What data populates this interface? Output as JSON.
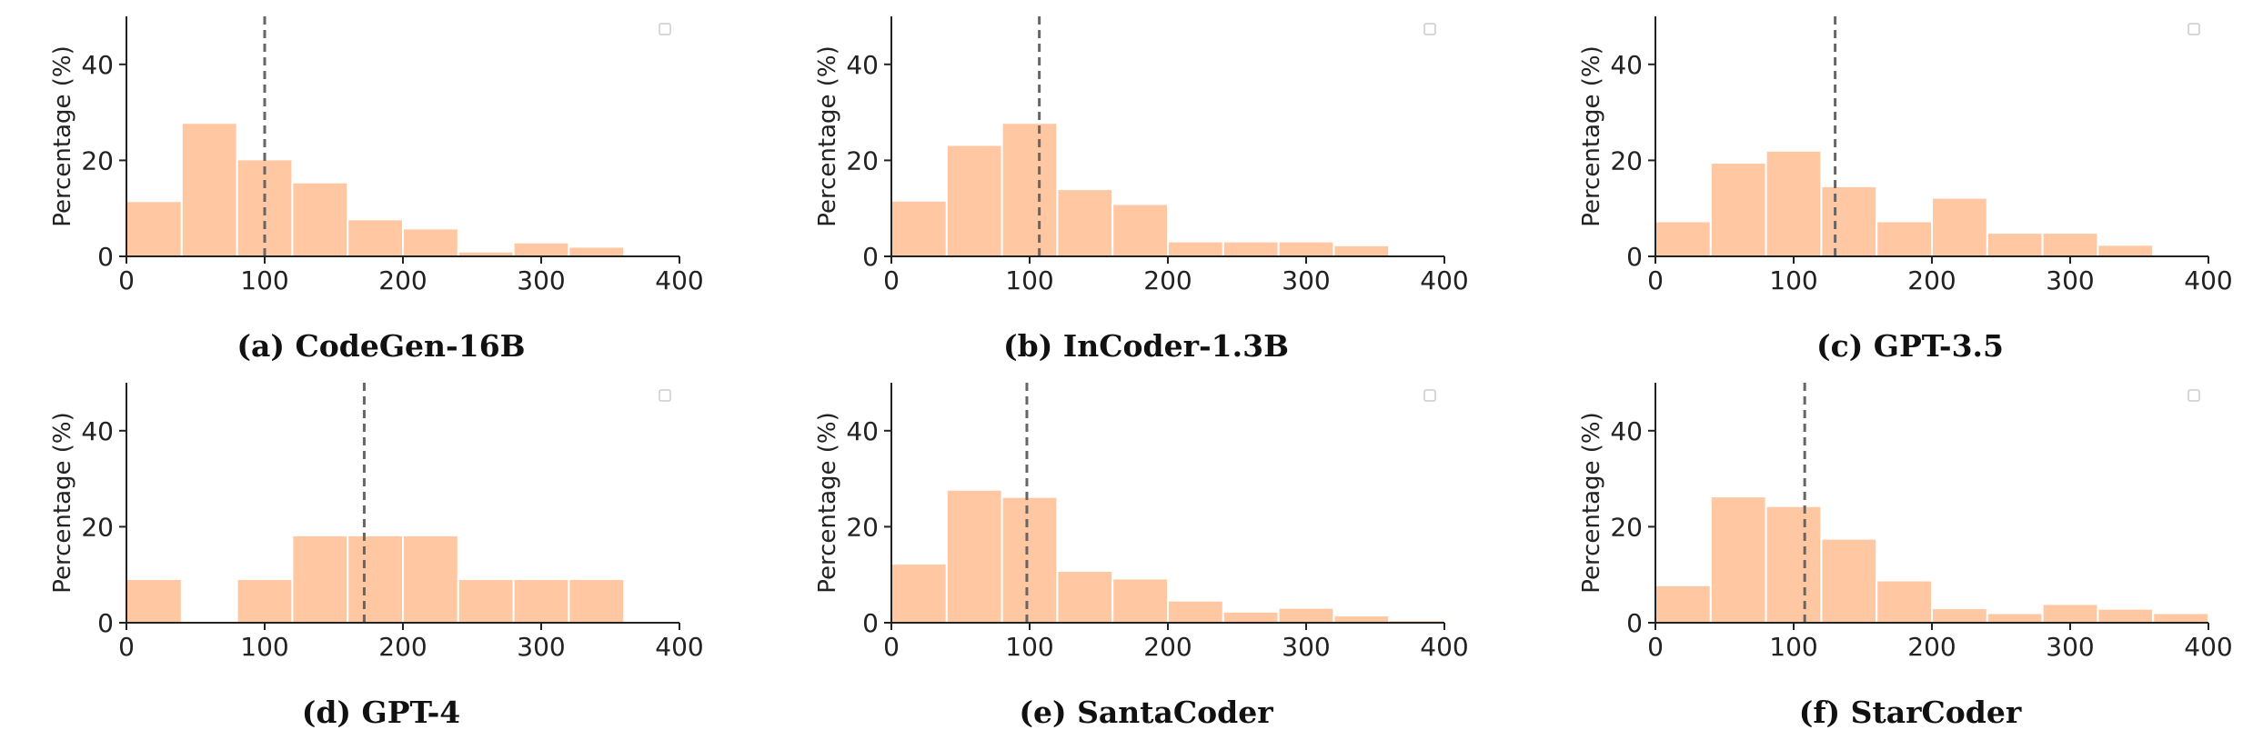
{
  "chart_data": [
    {
      "type": "bar",
      "caption": "(a) CodeGen-16B",
      "ylabel": "Percentage (%)",
      "xlim": [
        0,
        400
      ],
      "ylim": [
        0,
        50
      ],
      "xticks": [
        "0",
        "100",
        "200",
        "300",
        "400"
      ],
      "yticks": [
        "0",
        "20",
        "40"
      ],
      "bin_width": 40,
      "bins": [
        0,
        40,
        80,
        120,
        160,
        200,
        240,
        280,
        320,
        360
      ],
      "values": [
        11.5,
        27.8,
        20.2,
        15.4,
        7.7,
        5.8,
        1.0,
        2.9,
        2.0,
        0
      ],
      "reference_line": 100,
      "legend": "empty box top-right",
      "grid": false
    },
    {
      "type": "bar",
      "caption": "(b) InCoder-1.3B",
      "ylabel": "Percentage (%)",
      "xlim": [
        0,
        400
      ],
      "ylim": [
        0,
        50
      ],
      "xticks": [
        "0",
        "100",
        "200",
        "300",
        "400"
      ],
      "yticks": [
        "0",
        "20",
        "40"
      ],
      "bin_width": 40,
      "bins": [
        0,
        40,
        80,
        120,
        160,
        200,
        240,
        280,
        320,
        360
      ],
      "values": [
        11.6,
        23.2,
        27.8,
        14.0,
        10.9,
        3.1,
        3.1,
        3.1,
        2.3,
        0
      ],
      "reference_line": 107,
      "legend": "empty box top-right",
      "grid": false
    },
    {
      "type": "bar",
      "caption": "(c) GPT-3.5",
      "ylabel": "Percentage (%)",
      "xlim": [
        0,
        400
      ],
      "ylim": [
        0,
        50
      ],
      "xticks": [
        "0",
        "100",
        "200",
        "300",
        "400"
      ],
      "yticks": [
        "0",
        "20",
        "40"
      ],
      "bin_width": 40,
      "bins": [
        0,
        40,
        80,
        120,
        160,
        200,
        240,
        280,
        320,
        360
      ],
      "values": [
        7.3,
        19.5,
        22.0,
        14.6,
        7.3,
        12.2,
        4.9,
        4.9,
        2.4,
        0
      ],
      "reference_line": 130,
      "legend": "empty box top-right",
      "grid": false
    },
    {
      "type": "bar",
      "caption": "(d) GPT-4",
      "ylabel": "Percentage (%)",
      "xlim": [
        0,
        400
      ],
      "ylim": [
        0,
        50
      ],
      "xticks": [
        "0",
        "100",
        "200",
        "300",
        "400"
      ],
      "yticks": [
        "0",
        "20",
        "40"
      ],
      "bin_width": 40,
      "bins": [
        0,
        40,
        80,
        120,
        160,
        200,
        240,
        280,
        320,
        360
      ],
      "values": [
        9.1,
        0,
        9.1,
        18.2,
        18.2,
        18.2,
        9.1,
        9.1,
        9.1,
        0
      ],
      "reference_line": 172,
      "legend": "empty box top-right",
      "grid": false
    },
    {
      "type": "bar",
      "caption": "(e) SantaCoder",
      "ylabel": "Percentage (%)",
      "xlim": [
        0,
        400
      ],
      "ylim": [
        0,
        50
      ],
      "xticks": [
        "0",
        "100",
        "200",
        "300",
        "400"
      ],
      "yticks": [
        "0",
        "20",
        "40"
      ],
      "bin_width": 40,
      "bins": [
        0,
        40,
        80,
        120,
        160,
        200,
        240,
        280,
        320,
        360
      ],
      "values": [
        12.3,
        27.7,
        26.2,
        10.8,
        9.2,
        4.6,
        2.3,
        3.1,
        1.5,
        0.5
      ],
      "reference_line": 98,
      "legend": "empty box top-right",
      "grid": false
    },
    {
      "type": "bar",
      "caption": "(f) StarCoder",
      "ylabel": "Percentage (%)",
      "xlim": [
        0,
        400
      ],
      "ylim": [
        0,
        50
      ],
      "xticks": [
        "0",
        "100",
        "200",
        "300",
        "400"
      ],
      "yticks": [
        "0",
        "20",
        "40"
      ],
      "bin_width": 40,
      "bins": [
        0,
        40,
        80,
        120,
        160,
        200,
        240,
        280,
        320,
        360
      ],
      "values": [
        7.8,
        26.3,
        24.3,
        17.5,
        8.8,
        3.0,
        2.0,
        3.9,
        2.9,
        2.0
      ],
      "reference_line": 108,
      "legend": "empty box top-right",
      "grid": false
    }
  ],
  "colors": {
    "bar_fill": "#FFC8A2",
    "bar_edge": "#ffffff",
    "axis": "#222222",
    "reference_line": "#666666",
    "legend_box": "#cccccc"
  }
}
